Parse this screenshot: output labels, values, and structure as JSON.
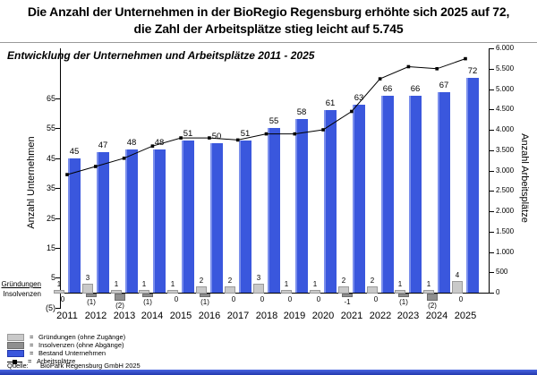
{
  "headline": {
    "line1": "Die Anzahl der Unternehmen in der BioRegio Regensburg erhöhte sich 2025 auf 72,",
    "line2": "die Zahl der Arbeitsplätze stieg leicht auf 5.745"
  },
  "chart_title": "Entwicklung der Unternehmen und Arbeitsplätze 2011 - 2025",
  "axis_annotations": {
    "gruendungen": "Gründungen",
    "insolvenzen": "Insolvenzen"
  },
  "legend": {
    "equals": "=",
    "items": [
      {
        "key": "gruendungen",
        "swatch": "light-gray",
        "label": "Gründungen (ohne Zugänge)"
      },
      {
        "key": "insolvenzen",
        "swatch": "gray",
        "label": "Insolvenzen (ohne Abgänge)"
      },
      {
        "key": "bestand",
        "swatch": "blue",
        "label": "Bestand Unternehmen"
      },
      {
        "key": "arbeitsplaetze",
        "swatch": "line",
        "label": "Arbeitsplätze"
      }
    ],
    "source_label": "Quelle:",
    "source": "BioPark Regensburg GmbH 2025"
  },
  "colors": {
    "bar_blue": "#3a57dd",
    "bar_blue_highlight": "#7b8fec",
    "gruendungen_gray": "#c9c9c9",
    "insolvenzen_gray": "#8f8f8f",
    "line_black": "#000000",
    "footer_blue": "#2338ae"
  },
  "chart_data": {
    "type": "combo (grouped bars on left axis + line on right axis, dual y-axes)",
    "title": "Entwicklung der Unternehmen und Arbeitsplätze 2011 - 2025",
    "categories": [
      2011,
      2012,
      2013,
      2014,
      2015,
      2016,
      2017,
      2018,
      2019,
      2020,
      2021,
      2022,
      2023,
      2024,
      2025
    ],
    "series": [
      {
        "name": "Gründungen (ohne Zugänge)",
        "type": "bar",
        "axis": "left",
        "color": "#c9c9c9",
        "values": [
          1,
          3,
          1,
          1,
          1,
          2,
          2,
          3,
          1,
          1,
          2,
          2,
          1,
          1,
          4
        ]
      },
      {
        "name": "Insolvenzen (ohne Abgänge)",
        "type": "bar",
        "axis": "left",
        "color": "#8f8f8f",
        "values": [
          0,
          -1,
          -2,
          -1,
          0,
          -1,
          0,
          0,
          0,
          0,
          -1,
          0,
          -1,
          -2,
          0
        ],
        "labels": [
          "0",
          "(1)",
          "(2)",
          "(1)",
          "0",
          "(1)",
          "0",
          "0",
          "0",
          "0",
          "-1",
          "0",
          "(1)",
          "(2)",
          "0"
        ]
      },
      {
        "name": "Bestand Unternehmen",
        "type": "bar",
        "axis": "left",
        "color": "#3a57dd",
        "values": [
          45,
          47,
          48,
          48,
          51,
          50,
          51,
          55,
          58,
          61,
          63,
          66,
          66,
          67,
          72
        ]
      },
      {
        "name": "Arbeitsplätze",
        "type": "line",
        "axis": "right",
        "color": "#000000",
        "note": "line is not value-labeled in the chart; values estimated from the right axis gridlines, final 2025 value 5.745 given in headline",
        "values": [
          2900,
          3100,
          3300,
          3600,
          3800,
          3800,
          3750,
          3900,
          3900,
          4000,
          4450,
          5250,
          5550,
          5500,
          5745
        ]
      }
    ],
    "left_axis": {
      "title": "Anzahl Unternehmen",
      "range": [
        -5,
        70
      ],
      "tick_values": [
        65,
        55,
        45,
        35,
        25,
        15,
        5,
        -5
      ],
      "tick_labels": [
        "65",
        "55",
        "45",
        "35",
        "25",
        "15",
        "5",
        "(5)"
      ]
    },
    "right_axis": {
      "title": "Anzahl Arbeitsplätze",
      "range": [
        0,
        6000
      ],
      "tick_values": [
        6000,
        5500,
        5000,
        4500,
        4000,
        3500,
        3000,
        2500,
        2000,
        1500,
        1000,
        500,
        0
      ],
      "tick_labels": [
        "6.000",
        "5.500",
        "5.000",
        "4.500",
        "4.000",
        "3.500",
        "3.000",
        "2.500",
        "2.000",
        "1.500",
        "1.000",
        "500",
        "0"
      ]
    },
    "grid": false,
    "legend_position": "bottom-left",
    "bar_value_labels_shown": true
  }
}
